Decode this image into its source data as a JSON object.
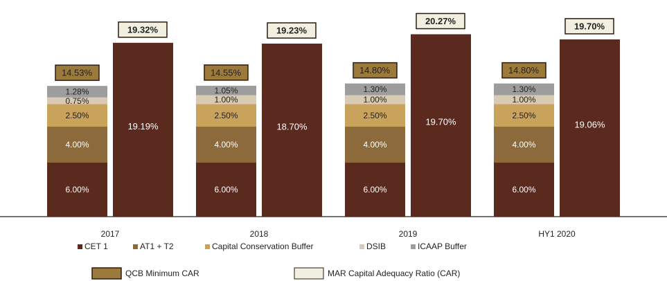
{
  "chart_data": {
    "type": "grouped-stacked-bar",
    "categories": [
      "2017",
      "2018",
      "2019",
      "HY1 2020"
    ],
    "series": [
      {
        "name": "CET 1",
        "color": "#5b2a1f",
        "values": [
          6,
          6,
          6,
          6
        ],
        "value_labels": [
          "6.00%",
          "6.00%",
          "6.00%",
          "6.00%"
        ]
      },
      {
        "name": "AT1 + T2",
        "color": "#8c6a3b",
        "values": [
          4,
          4,
          4,
          4
        ],
        "value_labels": [
          "4.00%",
          "4.00%",
          "4.00%",
          "4.00%"
        ]
      },
      {
        "name": "Capital Conservation Buffer",
        "color": "#c9a25c",
        "values": [
          2.5,
          2.5,
          2.5,
          2.5
        ],
        "value_labels": [
          "2.50%",
          "2.50%",
          "2.50%",
          "2.50%"
        ]
      },
      {
        "name": "DSIB",
        "color": "#d8cab3",
        "values": [
          0.75,
          1,
          1,
          1
        ],
        "value_labels": [
          "0.75%",
          "1.00%",
          "1.00%",
          "1.00%"
        ]
      },
      {
        "name": "ICAAP Buffer",
        "color": "#9d9d9d",
        "values": [
          1.28,
          1.05,
          1.3,
          1.3
        ],
        "value_labels": [
          "1.28%",
          "1.05%",
          "1.30%",
          "1.30%"
        ]
      }
    ],
    "qcb_min": {
      "name": "QCB Minimum CAR",
      "color": "#9c7a3c",
      "values": [
        14.53,
        14.55,
        14.8,
        14.8
      ],
      "value_labels": [
        "14.53%",
        "14.55%",
        "14.80%",
        "14.80%"
      ]
    },
    "mar_car": {
      "name": "MAR Capital Adequacy Ratio (CAR)",
      "color": "#f1efdf",
      "values": [
        19.32,
        19.23,
        20.27,
        19.7
      ],
      "value_labels": [
        "19.32%",
        "19.23%",
        "20.27%",
        "19.70%"
      ]
    },
    "mar_cet1": {
      "values": [
        19.19,
        18.7,
        19.7,
        19.06
      ],
      "value_labels": [
        "19.19%",
        "18.70%",
        "19.70%",
        "19.06%"
      ]
    }
  }
}
